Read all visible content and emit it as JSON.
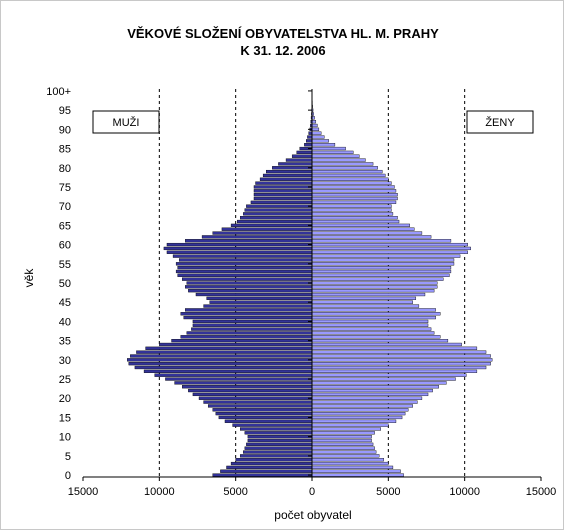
{
  "chart_data": {
    "type": "bar",
    "orientation": "horizontal-pyramid",
    "title": "VĚKOVÉ SLOŽENÍ OBYVATELSTVA HL. M. PRAHY",
    "subtitle": "K  31. 12. 2006",
    "xlabel": "počet obyvatel",
    "ylabel": "věk",
    "xlim": [
      -15000,
      15000
    ],
    "x_ticks": [
      {
        "value": -15000,
        "label": "15000"
      },
      {
        "value": -10000,
        "label": "10000"
      },
      {
        "value": -5000,
        "label": "5000"
      },
      {
        "value": 0,
        "label": "0"
      },
      {
        "value": 5000,
        "label": "5000"
      },
      {
        "value": 10000,
        "label": "10000"
      },
      {
        "value": 15000,
        "label": "15000"
      }
    ],
    "y_ticks": [
      {
        "age": 0,
        "label": "0"
      },
      {
        "age": 5,
        "label": "5"
      },
      {
        "age": 10,
        "label": "10"
      },
      {
        "age": 15,
        "label": "15"
      },
      {
        "age": 20,
        "label": "20"
      },
      {
        "age": 25,
        "label": "25"
      },
      {
        "age": 30,
        "label": "30"
      },
      {
        "age": 35,
        "label": "35"
      },
      {
        "age": 40,
        "label": "40"
      },
      {
        "age": 45,
        "label": "45"
      },
      {
        "age": 50,
        "label": "50"
      },
      {
        "age": 55,
        "label": "55"
      },
      {
        "age": 60,
        "label": "60"
      },
      {
        "age": 65,
        "label": "65"
      },
      {
        "age": 70,
        "label": "70"
      },
      {
        "age": 75,
        "label": "75"
      },
      {
        "age": 80,
        "label": "80"
      },
      {
        "age": 85,
        "label": "85"
      },
      {
        "age": 90,
        "label": "90"
      },
      {
        "age": 95,
        "label": "95"
      },
      {
        "age": 100,
        "label": "100+"
      }
    ],
    "gridlines_x": [
      -10000,
      -5000,
      5000,
      10000
    ],
    "grid": "dashed vertical",
    "legend": [
      {
        "name": "MUŽI",
        "position": "top-left"
      },
      {
        "name": "ŽENY",
        "position": "top-right"
      }
    ],
    "ages": [
      0,
      1,
      2,
      3,
      4,
      5,
      6,
      7,
      8,
      9,
      10,
      11,
      12,
      13,
      14,
      15,
      16,
      17,
      18,
      19,
      20,
      21,
      22,
      23,
      24,
      25,
      26,
      27,
      28,
      29,
      30,
      31,
      32,
      33,
      34,
      35,
      36,
      37,
      38,
      39,
      40,
      41,
      42,
      43,
      44,
      45,
      46,
      47,
      48,
      49,
      50,
      51,
      52,
      53,
      54,
      55,
      56,
      57,
      58,
      59,
      60,
      61,
      62,
      63,
      64,
      65,
      66,
      67,
      68,
      69,
      70,
      71,
      72,
      73,
      74,
      75,
      76,
      77,
      78,
      79,
      80,
      81,
      82,
      83,
      84,
      85,
      86,
      87,
      88,
      89,
      90,
      91,
      92,
      93,
      94,
      95,
      96,
      97,
      98,
      99,
      100
    ],
    "series": [
      {
        "name": "MUŽI",
        "color": "#333399",
        "values": [
          6500,
          6000,
          5600,
          5300,
          5000,
          4700,
          4500,
          4400,
          4300,
          4200,
          4200,
          4400,
          4700,
          5200,
          5700,
          6100,
          6300,
          6500,
          6800,
          7100,
          7400,
          7800,
          8100,
          8500,
          9000,
          9600,
          10300,
          11000,
          11600,
          12000,
          12100,
          11900,
          11500,
          10900,
          10000,
          9200,
          8600,
          8200,
          7900,
          7800,
          7800,
          8400,
          8600,
          8300,
          7100,
          6700,
          6900,
          7600,
          8100,
          8300,
          8200,
          8500,
          8800,
          8900,
          8800,
          8900,
          8700,
          9100,
          9500,
          9700,
          9500,
          8300,
          7200,
          6500,
          5900,
          5300,
          4900,
          4700,
          4500,
          4400,
          4300,
          4000,
          3800,
          3800,
          3800,
          3800,
          3700,
          3400,
          3200,
          3000,
          2600,
          2200,
          1700,
          1300,
          1000,
          800,
          500,
          380,
          300,
          220,
          150,
          110,
          80,
          60,
          40,
          25,
          15,
          10,
          5,
          3,
          2
        ]
      },
      {
        "name": "ŽENY",
        "color": "#9999ff",
        "values": [
          6000,
          5800,
          5300,
          5000,
          4700,
          4400,
          4200,
          4100,
          4000,
          3900,
          3900,
          4100,
          4500,
          5000,
          5500,
          5900,
          6100,
          6300,
          6600,
          6900,
          7200,
          7600,
          7900,
          8300,
          8800,
          9400,
          10100,
          10800,
          11400,
          11700,
          11800,
          11700,
          11400,
          10800,
          9800,
          8900,
          8400,
          8000,
          7800,
          7600,
          7600,
          8100,
          8400,
          8100,
          7000,
          6600,
          6800,
          7400,
          8000,
          8200,
          8200,
          8600,
          9000,
          9100,
          9100,
          9300,
          9300,
          9700,
          10200,
          10400,
          10200,
          9100,
          7800,
          7200,
          6700,
          6400,
          5700,
          5600,
          5300,
          5200,
          5200,
          5500,
          5600,
          5600,
          5500,
          5400,
          5200,
          5000,
          4800,
          4600,
          4300,
          4000,
          3500,
          3100,
          2700,
          2200,
          1500,
          1100,
          800,
          600,
          450,
          350,
          250,
          170,
          110,
          70,
          40,
          25,
          15,
          8,
          5
        ]
      }
    ]
  }
}
